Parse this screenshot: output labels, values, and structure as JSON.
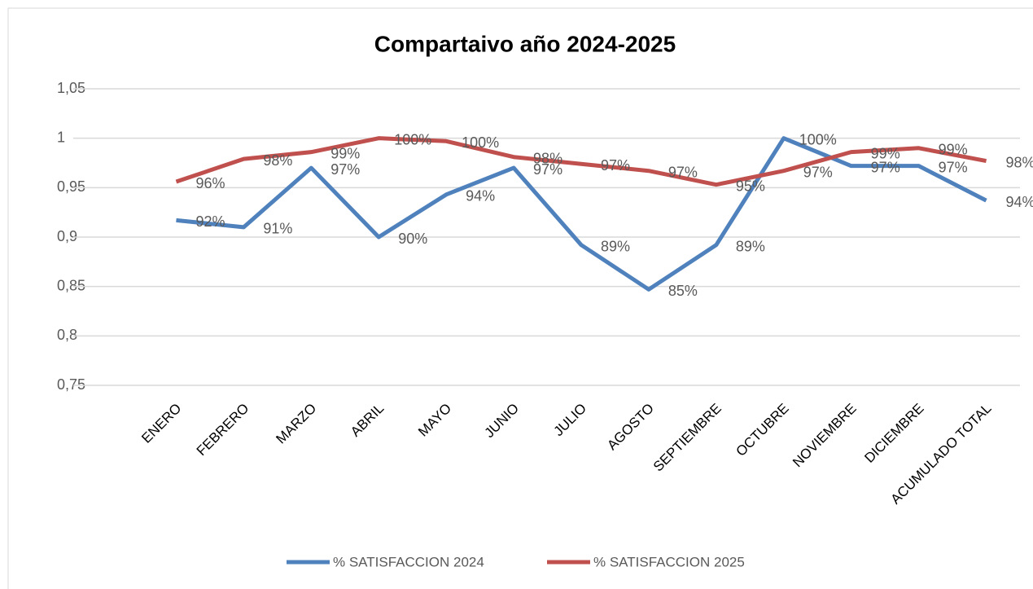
{
  "chart_data": {
    "type": "line",
    "title": "Compartaivo año 2024-2025",
    "categories": [
      "ENERO",
      "FEBRERO",
      "MARZO",
      "ABRIL",
      "MAYO",
      "JUNIO",
      "JULIO",
      "AGOSTO",
      "SEPTIEMBRE",
      "OCTUBRE",
      "NOVIEMBRE",
      "DICIEMBRE",
      "ACUMULADO TOTAL"
    ],
    "series": [
      {
        "name": "% SATISFACCION 2024",
        "color": "#4f81bd",
        "values": [
          0.917,
          0.91,
          0.97,
          0.9,
          0.943,
          0.97,
          0.892,
          0.847,
          0.892,
          1.0,
          0.972,
          0.972,
          0.937
        ],
        "value_labels": [
          "92%",
          "91%",
          "97%",
          "90%",
          "94%",
          "97%",
          "89%",
          "85%",
          "89%",
          "100%",
          "97%",
          "97%",
          "94%"
        ]
      },
      {
        "name": "% SATISFACCION 2025",
        "color": "#c0504d",
        "values": [
          0.956,
          0.979,
          0.986,
          1.0,
          0.997,
          0.981,
          0.974,
          0.967,
          0.953,
          0.967,
          0.986,
          0.99,
          0.977
        ],
        "value_labels": [
          "96%",
          "98%",
          "99%",
          "100%",
          "100%",
          "98%",
          "97%",
          "97%",
          "95%",
          "97%",
          "99%",
          "99%",
          "98%"
        ]
      }
    ],
    "ylim": [
      0.75,
      1.05
    ],
    "yticks": [
      {
        "value": 0.75,
        "label": "0,75"
      },
      {
        "value": 0.8,
        "label": "0,8"
      },
      {
        "value": 0.85,
        "label": "0,85"
      },
      {
        "value": 0.9,
        "label": "0,9"
      },
      {
        "value": 0.95,
        "label": "0,95"
      },
      1,
      {
        "value": 1.05,
        "label": "1,05"
      }
    ],
    "grid": true,
    "legend": "bottom"
  }
}
